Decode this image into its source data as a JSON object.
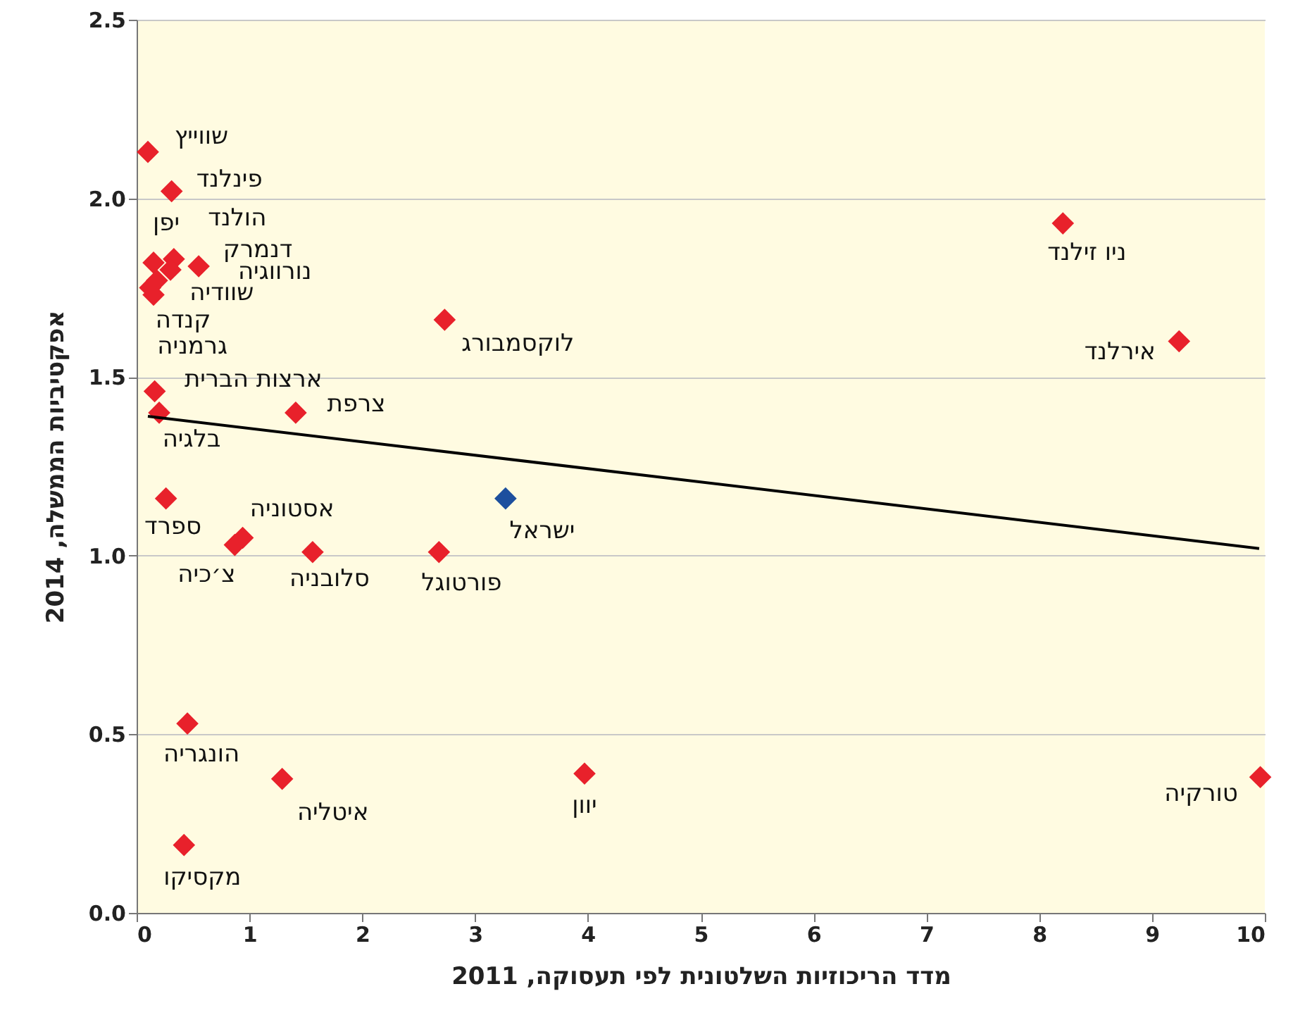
{
  "chart_data": {
    "type": "scatter",
    "xlabel": "מדד הריכוזיות השלטונית לפי תעסוקה, 2011",
    "ylabel": "אפקטיביות הממשלה, 2014",
    "xlim": [
      0,
      10
    ],
    "xticks": [
      0,
      1,
      2,
      3,
      4,
      5,
      6,
      7,
      8,
      9,
      10
    ],
    "ylim": [
      0,
      2.5
    ],
    "yticks": [
      {
        "value": 0,
        "label": "0.0"
      },
      {
        "value": 0.5,
        "label": "0.5"
      },
      {
        "value": 1,
        "label": "1.0"
      },
      {
        "value": 1.5,
        "label": "1.5"
      },
      {
        "value": 2,
        "label": "2.0"
      },
      {
        "value": 2.5,
        "label": "2.5"
      }
    ],
    "grid": "y",
    "series": [
      {
        "marker": "diamond",
        "x": [
          0.1,
          0.31,
          0.15,
          0.33,
          0.3,
          0.55,
          0.18,
          0.15,
          0.12,
          0.16,
          0.2,
          1.41,
          0.26,
          0.94,
          0.87,
          1.56,
          2.68,
          3.27,
          2.73,
          8.21,
          9.24,
          0.45,
          1.29,
          3.97,
          9.96,
          0.42
        ],
        "values": [
          2.13,
          2.02,
          1.82,
          1.83,
          1.8,
          1.81,
          1.77,
          1.73,
          1.75,
          1.46,
          1.4,
          1.4,
          1.16,
          1.05,
          1.03,
          1.01,
          1.01,
          1.16,
          1.66,
          1.93,
          1.6,
          0.53,
          0.375,
          0.39,
          0.38,
          0.19
        ],
        "colors": [
          "#e8212b",
          "#e8212b",
          "#e8212b",
          "#e8212b",
          "#e8212b",
          "#e8212b",
          "#e8212b",
          "#e8212b",
          "#e8212b",
          "#e8212b",
          "#e8212b",
          "#e8212b",
          "#e8212b",
          "#e8212b",
          "#e8212b",
          "#e8212b",
          "#e8212b",
          "#1d4f9e",
          "#e8212b",
          "#e8212b",
          "#e8212b",
          "#e8212b",
          "#e8212b",
          "#e8212b",
          "#e8212b",
          "#e8212b"
        ]
      },
      {
        "type": "line",
        "x": [
          0.1,
          9.95
        ],
        "values": [
          1.39,
          1.02
        ],
        "color": "#000000",
        "line_style": "solid"
      }
    ],
    "annotations": [
      {
        "text": "שווייץ",
        "x": 0.1,
        "y": 2.13
      },
      {
        "text": "פינלנד",
        "x": 0.31,
        "y": 2.02
      },
      {
        "text": "יפן",
        "x": 0.15,
        "y": 1.82
      },
      {
        "text": "הולנד",
        "x": 0.33,
        "y": 1.83
      },
      {
        "text": "דנמרק",
        "x": 0.3,
        "y": 1.8
      },
      {
        "text": "נורווגיה",
        "x": 0.55,
        "y": 1.81
      },
      {
        "text": "שוודיה",
        "x": 0.18,
        "y": 1.77
      },
      {
        "text": "קנדה",
        "x": 0.15,
        "y": 1.73
      },
      {
        "text": "גרמניה",
        "x": 0.12,
        "y": 1.75
      },
      {
        "text": "ארצות הברית",
        "x": 0.16,
        "y": 1.46
      },
      {
        "text": "בלגיה",
        "x": 0.2,
        "y": 1.4
      },
      {
        "text": "צרפת",
        "x": 1.41,
        "y": 1.4
      },
      {
        "text": "ספרד",
        "x": 0.26,
        "y": 1.16
      },
      {
        "text": "אסטוניה",
        "x": 0.94,
        "y": 1.05
      },
      {
        "text": "צ׳כיה",
        "x": 0.87,
        "y": 1.03
      },
      {
        "text": "סלובניה",
        "x": 1.56,
        "y": 1.01
      },
      {
        "text": "פורטוגל",
        "x": 2.68,
        "y": 1.01
      },
      {
        "text": "ישראל",
        "x": 3.27,
        "y": 1.16
      },
      {
        "text": "לוקסמבורג",
        "x": 2.73,
        "y": 1.66
      },
      {
        "text": "ניו זילנד",
        "x": 8.21,
        "y": 1.93
      },
      {
        "text": "אירלנד",
        "x": 9.24,
        "y": 1.6
      },
      {
        "text": "הונגריה",
        "x": 0.45,
        "y": 0.53
      },
      {
        "text": "איטליה",
        "x": 1.29,
        "y": 0.375
      },
      {
        "text": "יוון",
        "x": 3.97,
        "y": 0.39
      },
      {
        "text": "טורקיה",
        "x": 9.96,
        "y": 0.38
      },
      {
        "text": "מקסיקו",
        "x": 0.42,
        "y": 0.19
      }
    ]
  }
}
